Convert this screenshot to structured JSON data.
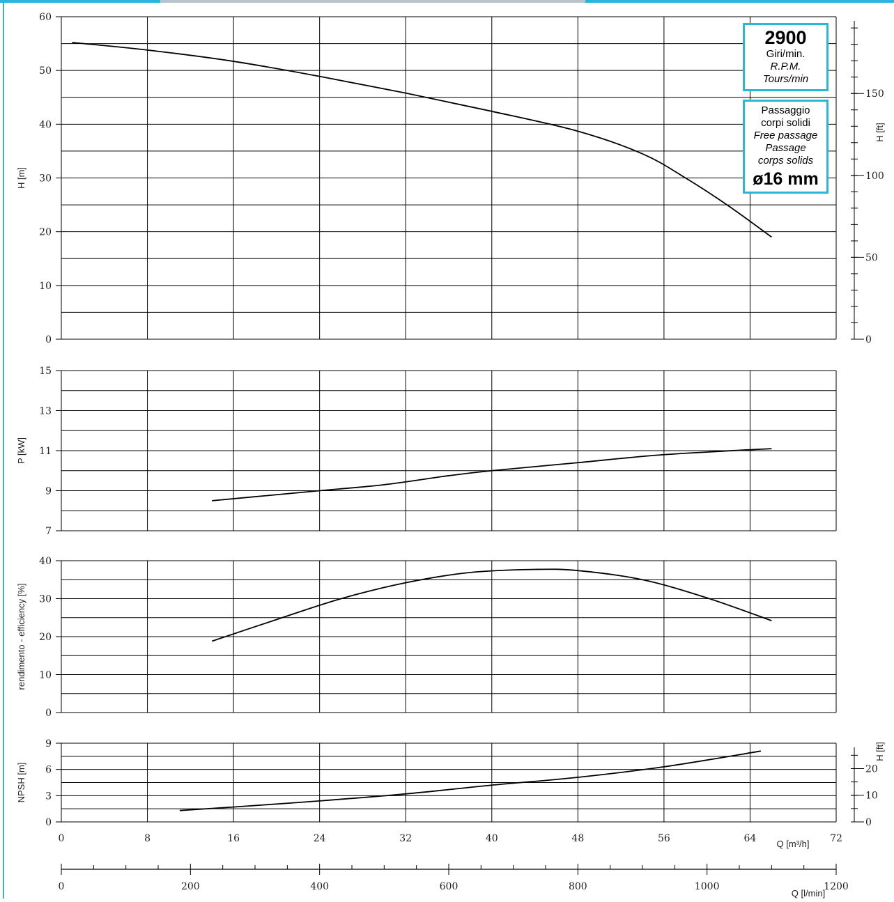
{
  "colors": {
    "accent": "#29b6d8",
    "grid": "#000000",
    "curve": "#000000"
  },
  "info_rpm": {
    "value": "2900",
    "line1": "Giri/min.",
    "line2": "R.P.M.",
    "line3": "Tours/min"
  },
  "info_passage": {
    "line1": "Passaggio",
    "line2": "corpi solidi",
    "line3": "Free passage",
    "line4": "Passage",
    "line5": "corps solids",
    "value": "ø16 mm"
  },
  "x_axis_q_m3h": {
    "label": "Q [m³/h]",
    "range": [
      0,
      72
    ],
    "ticks": [
      "0",
      "8",
      "16",
      "24",
      "32",
      "40",
      "48",
      "56",
      "64",
      "72"
    ]
  },
  "x_axis_q_lmin": {
    "label": "Q [l/min]",
    "range": [
      0,
      1200
    ],
    "ticks": [
      "0",
      "200",
      "400",
      "600",
      "800",
      "1000",
      "1200"
    ]
  },
  "chart_data": [
    {
      "type": "line",
      "ylabel": "H [m]",
      "ylim": [
        0,
        60
      ],
      "yticks": [
        "0",
        "10",
        "20",
        "30",
        "40",
        "50",
        "60"
      ],
      "secondary_axis": {
        "label": "H [ft]",
        "ticks": [
          "0",
          "50",
          "100",
          "150"
        ],
        "ft_per_m": 3.281
      },
      "grid": true,
      "series": [
        {
          "x": [
            1,
            8,
            16,
            24,
            32,
            40,
            48,
            54,
            58,
            62,
            66
          ],
          "y": [
            55.2,
            53.8,
            51.7,
            48.9,
            45.8,
            42.4,
            38.7,
            34.5,
            30.0,
            24.8,
            19.0
          ]
        }
      ]
    },
    {
      "type": "line",
      "ylabel": "P [kW]",
      "ylim": [
        7,
        15
      ],
      "yticks": [
        "7",
        "9",
        "11",
        "13",
        "15"
      ],
      "grid": true,
      "series": [
        {
          "x": [
            14,
            20,
            24,
            30,
            36,
            40,
            48,
            56,
            66
          ],
          "y": [
            8.5,
            8.8,
            9.0,
            9.3,
            9.75,
            10.0,
            10.4,
            10.8,
            11.1
          ]
        }
      ]
    },
    {
      "type": "line",
      "ylabel": "rendimento - efficiency  [%]",
      "ylim": [
        0,
        40
      ],
      "yticks": [
        "0",
        "10",
        "20",
        "30",
        "40"
      ],
      "grid": true,
      "series": [
        {
          "x": [
            14,
            20,
            26,
            32,
            38,
            44,
            48,
            54,
            60,
            66
          ],
          "y": [
            18.8,
            24.5,
            30.0,
            34.2,
            36.9,
            37.7,
            37.4,
            35.0,
            30.2,
            24.2
          ]
        }
      ]
    },
    {
      "type": "line",
      "ylabel": "NPSH  [m]",
      "ylim": [
        0,
        9
      ],
      "yticks": [
        "0",
        "3",
        "6",
        "9"
      ],
      "secondary_axis": {
        "label": "H [ft]",
        "ticks": [
          "0",
          "10",
          "20"
        ],
        "ft_per_m": 3.281
      },
      "grid": true,
      "series": [
        {
          "x": [
            11,
            16,
            24,
            32,
            40,
            48,
            56,
            65
          ],
          "y": [
            1.3,
            1.7,
            2.4,
            3.2,
            4.2,
            5.1,
            6.3,
            8.1
          ]
        }
      ]
    }
  ]
}
